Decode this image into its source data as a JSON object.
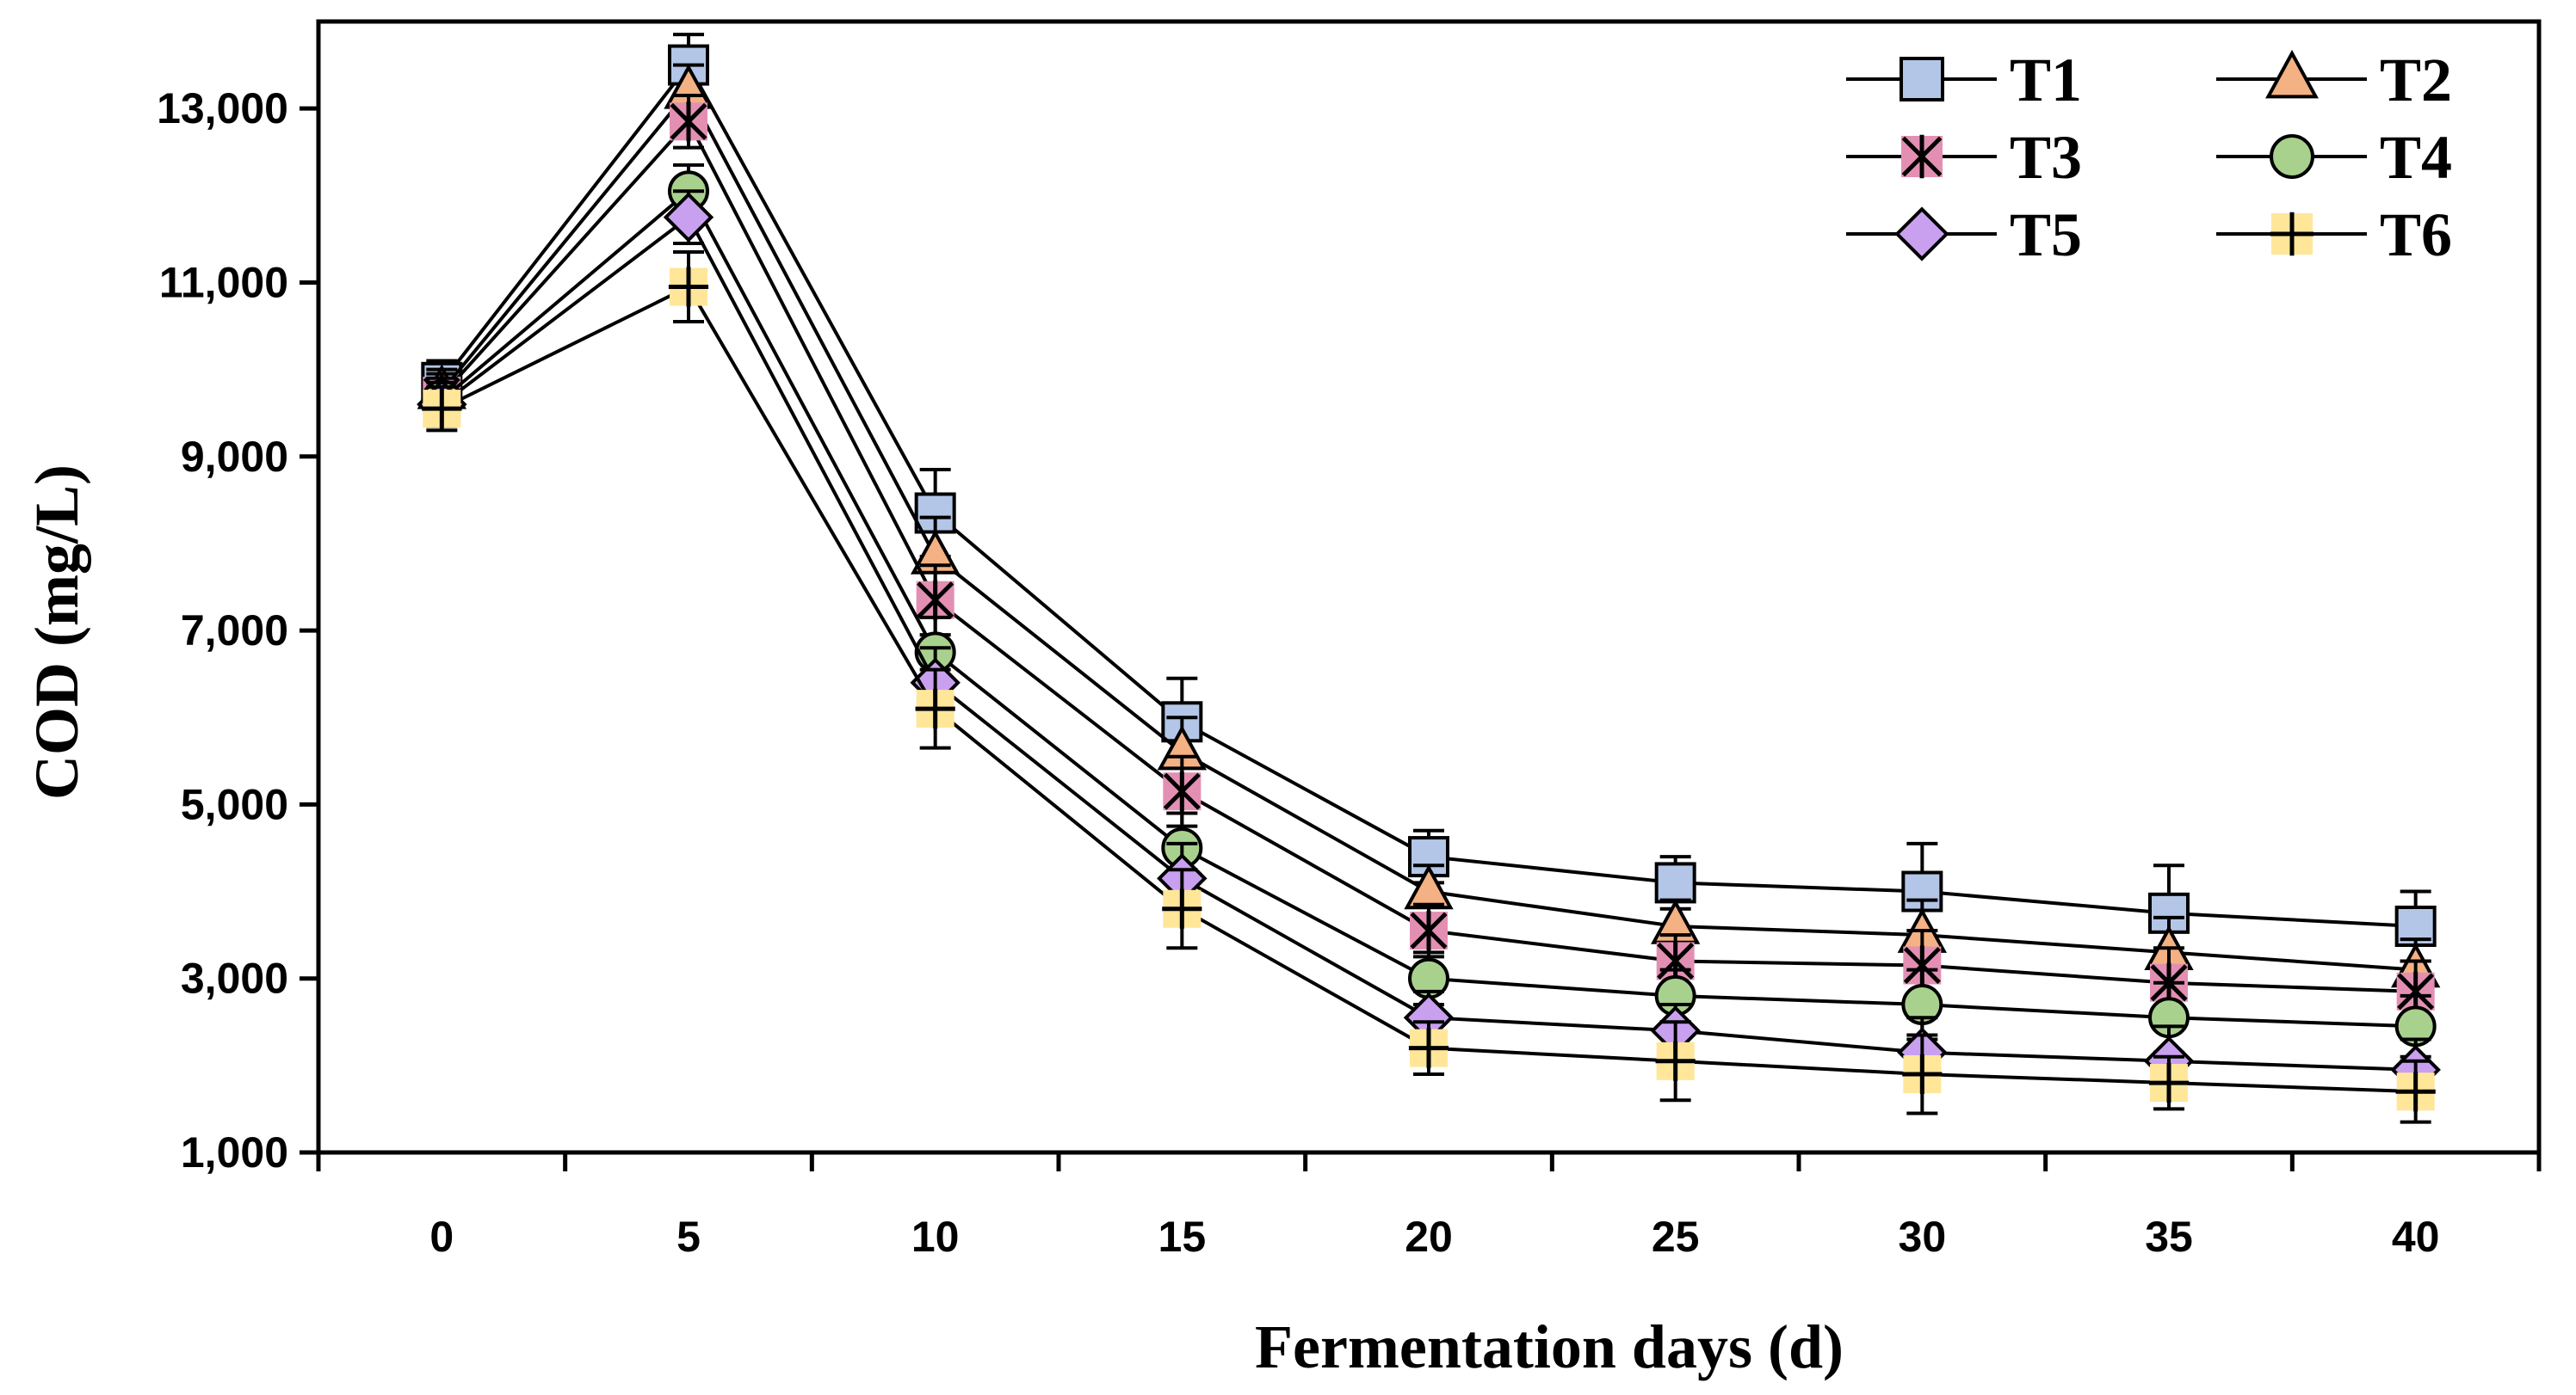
{
  "chart_data": {
    "type": "line",
    "xlabel": "Fermentation days (d)",
    "ylabel": "COD (mg/L)",
    "x": [
      0,
      5,
      10,
      15,
      20,
      25,
      30,
      35,
      40
    ],
    "xticks": [
      "0",
      "5",
      "10",
      "15",
      "20",
      "25",
      "30",
      "35",
      "40"
    ],
    "ylim": [
      1000,
      13000
    ],
    "yticks": [
      "1,000",
      "3,000",
      "5,000",
      "7,000",
      "9,000",
      "11,000",
      "13,000"
    ],
    "ytick_values": [
      1000,
      3000,
      5000,
      7000,
      9000,
      11000,
      13000
    ],
    "legend_position": "top-right",
    "series": [
      {
        "name": "T1",
        "marker": "square",
        "color": "#b4c6e7",
        "values": [
          9850,
          13500,
          8350,
          5950,
          4400,
          4100,
          4000,
          3750,
          3600
        ],
        "errors": [
          250,
          350,
          500,
          500,
          300,
          300,
          550,
          550,
          400
        ]
      },
      {
        "name": "T2",
        "marker": "triangle",
        "color": "#f4b183",
        "values": [
          9750,
          13200,
          7850,
          5600,
          4000,
          3600,
          3500,
          3300,
          3100
        ],
        "errors": [
          250,
          300,
          450,
          400,
          300,
          300,
          400,
          400,
          350
        ]
      },
      {
        "name": "T3",
        "marker": "asterisk",
        "color": "#e38fb3",
        "values": [
          9700,
          12850,
          7350,
          5150,
          3550,
          3200,
          3150,
          2950,
          2850
        ],
        "errors": [
          250,
          300,
          400,
          400,
          300,
          300,
          400,
          400,
          350
        ]
      },
      {
        "name": "T4",
        "marker": "circle",
        "color": "#a9d18e",
        "values": [
          9650,
          12050,
          6750,
          4500,
          3000,
          2800,
          2700,
          2550,
          2450
        ],
        "errors": [
          250,
          300,
          400,
          400,
          300,
          300,
          400,
          400,
          350
        ]
      },
      {
        "name": "T5",
        "marker": "diamond",
        "color": "#c9a0f0",
        "values": [
          9600,
          11750,
          6400,
          4150,
          2550,
          2400,
          2150,
          2050,
          1950
        ],
        "errors": [
          250,
          300,
          400,
          400,
          300,
          300,
          400,
          400,
          350
        ]
      },
      {
        "name": "T6",
        "marker": "plus",
        "color": "#ffe699",
        "values": [
          9550,
          10950,
          6100,
          3800,
          2200,
          2050,
          1900,
          1800,
          1700
        ],
        "errors": [
          250,
          400,
          450,
          450,
          300,
          450,
          450,
          300,
          350
        ]
      }
    ]
  }
}
